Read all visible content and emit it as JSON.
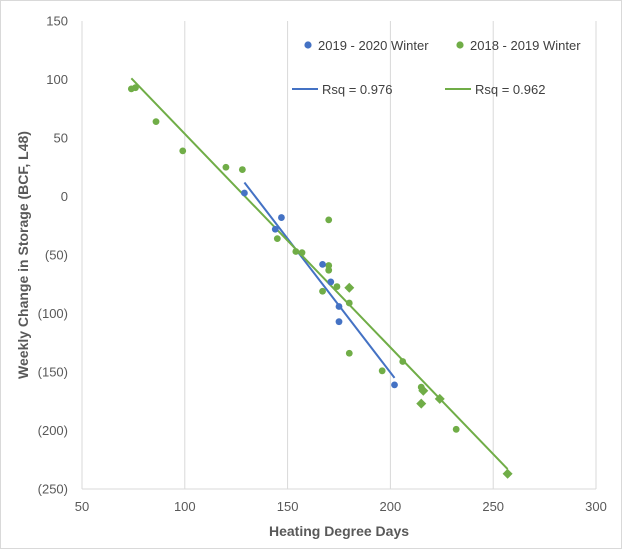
{
  "chart_data": {
    "type": "scatter",
    "xlabel": "Heating Degree Days",
    "ylabel": "Weekly Change in Storage (BCF, L48)",
    "xlim": [
      50,
      300
    ],
    "ylim": [
      -250,
      150
    ],
    "x_ticks": [
      50,
      100,
      150,
      200,
      250,
      300
    ],
    "y_ticks": [
      150,
      100,
      50,
      0,
      -50,
      -100,
      -150,
      -200,
      -250
    ],
    "y_tick_labels": [
      "150",
      "100",
      "50",
      "0",
      "(50)",
      "(100)",
      "(150)",
      "(200)",
      "(250)"
    ],
    "grid": "vertical",
    "legend_position": "top-right",
    "series": [
      {
        "name": "2019 - 2020 Winter",
        "color": "#4472c4",
        "marker": "circle",
        "points": [
          {
            "x": 129,
            "y": 3
          },
          {
            "x": 147,
            "y": -18
          },
          {
            "x": 144,
            "y": -28
          },
          {
            "x": 167,
            "y": -58
          },
          {
            "x": 171,
            "y": -73
          },
          {
            "x": 175,
            "y": -94
          },
          {
            "x": 175,
            "y": -107
          },
          {
            "x": 202,
            "y": -161
          }
        ],
        "trend": {
          "label": "Rsq = 0.976",
          "x": [
            129,
            202
          ],
          "y": [
            12,
            -155
          ]
        }
      },
      {
        "name": "2018 - 2019 Winter",
        "color": "#70ad47",
        "points": [
          {
            "x": 74,
            "y": 92,
            "marker": "circle"
          },
          {
            "x": 76,
            "y": 93,
            "marker": "circle"
          },
          {
            "x": 86,
            "y": 64,
            "marker": "circle"
          },
          {
            "x": 99,
            "y": 39,
            "marker": "circle"
          },
          {
            "x": 120,
            "y": 25,
            "marker": "circle"
          },
          {
            "x": 128,
            "y": 23,
            "marker": "circle"
          },
          {
            "x": 145,
            "y": -36,
            "marker": "circle"
          },
          {
            "x": 154,
            "y": -47,
            "marker": "circle"
          },
          {
            "x": 157,
            "y": -48,
            "marker": "circle"
          },
          {
            "x": 170,
            "y": -20,
            "marker": "circle"
          },
          {
            "x": 170,
            "y": -59,
            "marker": "circle"
          },
          {
            "x": 170,
            "y": -63,
            "marker": "circle"
          },
          {
            "x": 174,
            "y": -77,
            "marker": "circle"
          },
          {
            "x": 167,
            "y": -81,
            "marker": "circle"
          },
          {
            "x": 180,
            "y": -78,
            "marker": "diamond"
          },
          {
            "x": 180,
            "y": -91,
            "marker": "circle"
          },
          {
            "x": 180,
            "y": -134,
            "marker": "circle"
          },
          {
            "x": 196,
            "y": -149,
            "marker": "circle"
          },
          {
            "x": 206,
            "y": -141,
            "marker": "circle"
          },
          {
            "x": 215,
            "y": -163,
            "marker": "circle"
          },
          {
            "x": 216,
            "y": -166,
            "marker": "diamond"
          },
          {
            "x": 215,
            "y": -177,
            "marker": "diamond"
          },
          {
            "x": 224,
            "y": -173,
            "marker": "diamond"
          },
          {
            "x": 232,
            "y": -199,
            "marker": "circle"
          },
          {
            "x": 257,
            "y": -237,
            "marker": "diamond"
          }
        ],
        "trend": {
          "label": "Rsq = 0.962",
          "x": [
            74,
            257
          ],
          "y": [
            101,
            -233
          ]
        }
      }
    ]
  }
}
